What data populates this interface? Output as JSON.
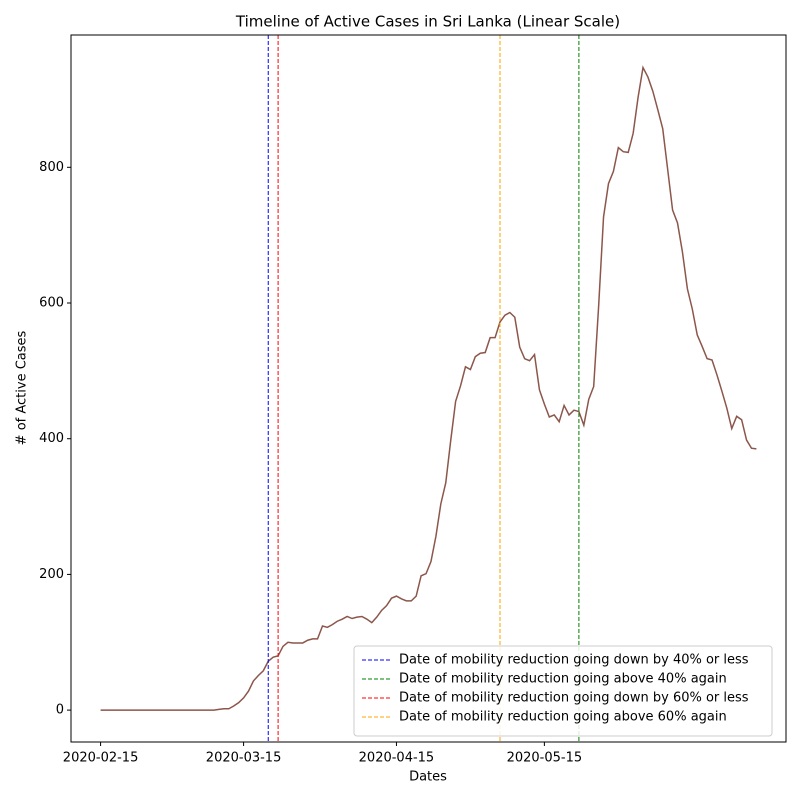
{
  "chart_data": {
    "type": "line",
    "title": "Timeline of Active Cases in Sri Lanka (Linear Scale)",
    "xlabel": "Dates",
    "ylabel": "# of Active Cases",
    "color": "#8c564b",
    "x": [
      "2020-02-15",
      "2020-02-16",
      "2020-02-17",
      "2020-02-18",
      "2020-02-19",
      "2020-02-20",
      "2020-02-21",
      "2020-02-22",
      "2020-02-23",
      "2020-02-24",
      "2020-02-25",
      "2020-02-26",
      "2020-02-27",
      "2020-02-28",
      "2020-02-29",
      "2020-03-01",
      "2020-03-02",
      "2020-03-03",
      "2020-03-04",
      "2020-03-05",
      "2020-03-06",
      "2020-03-07",
      "2020-03-08",
      "2020-03-09",
      "2020-03-10",
      "2020-03-11",
      "2020-03-12",
      "2020-03-13",
      "2020-03-14",
      "2020-03-15",
      "2020-03-16",
      "2020-03-17",
      "2020-03-18",
      "2020-03-19",
      "2020-03-20",
      "2020-03-21",
      "2020-03-22",
      "2020-03-23",
      "2020-03-24",
      "2020-03-25",
      "2020-03-26",
      "2020-03-27",
      "2020-03-28",
      "2020-03-29",
      "2020-03-30",
      "2020-03-31",
      "2020-04-01",
      "2020-04-02",
      "2020-04-03",
      "2020-04-04",
      "2020-04-05",
      "2020-04-06",
      "2020-04-07",
      "2020-04-08",
      "2020-04-09",
      "2020-04-10",
      "2020-04-11",
      "2020-04-12",
      "2020-04-13",
      "2020-04-14",
      "2020-04-15",
      "2020-04-16",
      "2020-04-17",
      "2020-04-18",
      "2020-04-19",
      "2020-04-20",
      "2020-04-21",
      "2020-04-22",
      "2020-04-23",
      "2020-04-24",
      "2020-04-25",
      "2020-04-26",
      "2020-04-27",
      "2020-04-28",
      "2020-04-29",
      "2020-04-30",
      "2020-05-01",
      "2020-05-02",
      "2020-05-03",
      "2020-05-04",
      "2020-05-05",
      "2020-05-06",
      "2020-05-07",
      "2020-05-08",
      "2020-05-09",
      "2020-05-10",
      "2020-05-11",
      "2020-05-12",
      "2020-05-13",
      "2020-05-14",
      "2020-05-15",
      "2020-05-16",
      "2020-05-17",
      "2020-05-18",
      "2020-05-19",
      "2020-05-20",
      "2020-05-21",
      "2020-05-22",
      "2020-05-23",
      "2020-05-24",
      "2020-05-25",
      "2020-05-26",
      "2020-05-27",
      "2020-05-28",
      "2020-05-29",
      "2020-05-30",
      "2020-05-31",
      "2020-06-01",
      "2020-06-02",
      "2020-06-03",
      "2020-06-04",
      "2020-06-05",
      "2020-06-06",
      "2020-06-07",
      "2020-06-08",
      "2020-06-09",
      "2020-06-10",
      "2020-06-11",
      "2020-06-12",
      "2020-06-13",
      "2020-06-14",
      "2020-06-15",
      "2020-06-16",
      "2020-06-17",
      "2020-06-18",
      "2020-06-19",
      "2020-06-20",
      "2020-06-21",
      "2020-06-22",
      "2020-06-23",
      "2020-06-24",
      "2020-06-25",
      "2020-06-26",
      "2020-06-27"
    ],
    "values": [
      0,
      0,
      0,
      0,
      0,
      0,
      0,
      0,
      0,
      0,
      0,
      0,
      0,
      0,
      0,
      0,
      0,
      0,
      0,
      0,
      0,
      0,
      0,
      0,
      1,
      2,
      2,
      6,
      11,
      18,
      28,
      43,
      51,
      58,
      72,
      78,
      80,
      94,
      100,
      99,
      99,
      99,
      103,
      105,
      105,
      124,
      122,
      126,
      131,
      134,
      138,
      135,
      137,
      138,
      134,
      129,
      137,
      147,
      154,
      165,
      168,
      164,
      161,
      161,
      168,
      198,
      201,
      219,
      256,
      304,
      335,
      397,
      455,
      478,
      506,
      502,
      521,
      526,
      527,
      549,
      549,
      572,
      582,
      586,
      579,
      535,
      518,
      515,
      524,
      472,
      451,
      432,
      435,
      425,
      449,
      435,
      442,
      440,
      420,
      458,
      477,
      595,
      727,
      776,
      794,
      829,
      823,
      822,
      850,
      903,
      947,
      933,
      912,
      885,
      857,
      797,
      737,
      718,
      675,
      621,
      591,
      553,
      536,
      518,
      516,
      494,
      470,
      445,
      415,
      433,
      428,
      398,
      386,
      385
    ],
    "xlim": [
      "2020-02-09",
      "2020-07-03"
    ],
    "xticks": [
      "2020-02-15",
      "2020-03-15",
      "2020-04-15",
      "2020-05-15"
    ],
    "ylim": [
      -47,
      995
    ],
    "yticks": [
      0,
      200,
      400,
      600,
      800
    ],
    "vlines": [
      {
        "x": "2020-03-20",
        "label": "Date of mobility reduction going down by 40% or less",
        "color": "blue"
      },
      {
        "x": "2020-05-22",
        "label": "Date of mobility reduction going above 40% again",
        "color": "green"
      },
      {
        "x": "2020-03-22",
        "label": "Date of mobility reduction going down by 60% or less",
        "color": "red"
      },
      {
        "x": "2020-05-06",
        "label": "Date of mobility reduction going above 60% again",
        "color": "orange"
      }
    ],
    "legend": "lower right"
  }
}
